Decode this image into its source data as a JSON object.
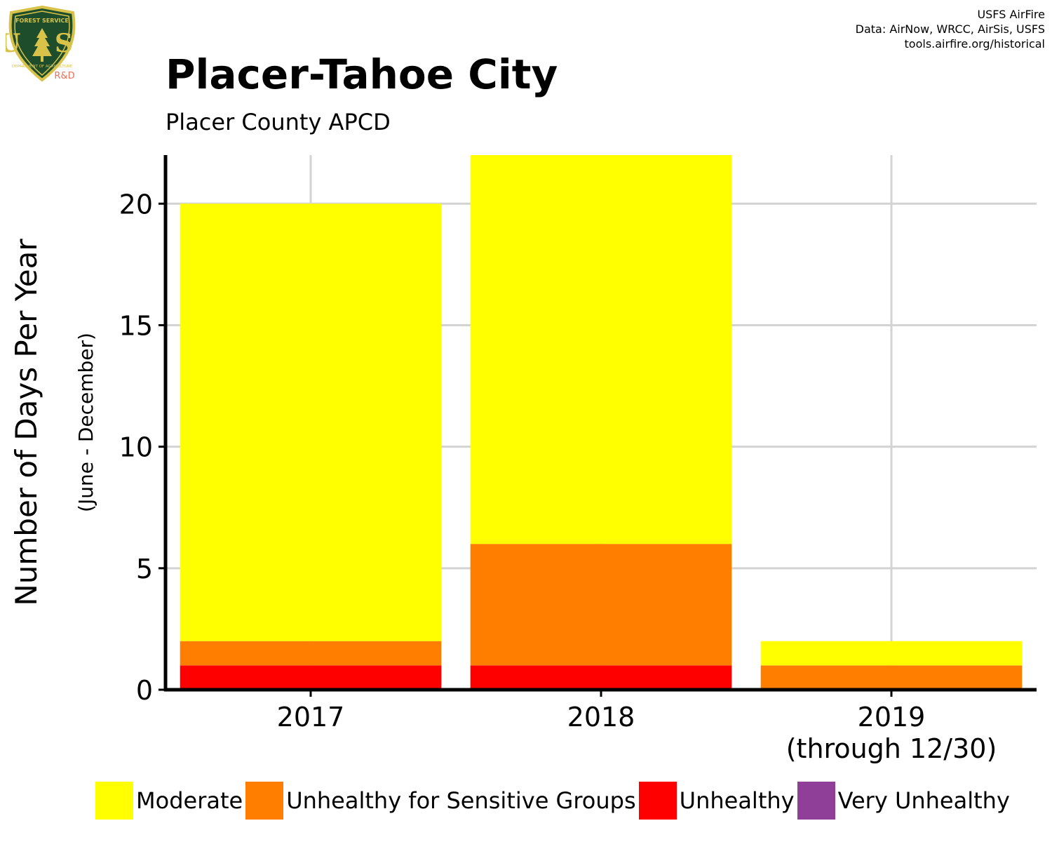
{
  "logo": {
    "text_top": "FOREST SERVICE",
    "text_mid": "U S",
    "text_bottom": "DEPARTMENT OF AGRICULTURE",
    "badge": "R&D",
    "icon": "usfs-shield-icon"
  },
  "credits": {
    "line1": "USFS AirFire",
    "line2": "Data: AirNow, WRCC, AirSis, USFS",
    "line3": "tools.airfire.org/historical"
  },
  "title": "Placer-Tahoe City",
  "subtitle": "Placer County APCD",
  "colors": {
    "moderate": "#FFFF00",
    "usg": "#FF7E00",
    "unhealthy": "#FF0000",
    "very_unhealthy": "#8F3F97",
    "grid": "#D3D3D3",
    "axis": "#000000"
  },
  "chart_data": {
    "type": "bar",
    "stacked": true,
    "categories": [
      "2017",
      "2018",
      "2019"
    ],
    "category_sublabels": [
      "",
      "",
      "(through 12/30)"
    ],
    "series": [
      {
        "name": "Unhealthy",
        "color": "#FF0000",
        "values": [
          1,
          1,
          0
        ]
      },
      {
        "name": "Unhealthy for Sensitive Groups",
        "color": "#FF7E00",
        "values": [
          1,
          5,
          1
        ]
      },
      {
        "name": "Moderate",
        "color": "#FFFF00",
        "values": [
          18,
          16,
          1
        ]
      },
      {
        "name": "Very Unhealthy",
        "color": "#8F3F97",
        "values": [
          0,
          0,
          0
        ]
      }
    ],
    "ylabel": "Number of Days Per Year",
    "ylabel_sub": "(June - December)",
    "ylim": [
      0,
      22
    ],
    "yticks": [
      0,
      5,
      10,
      15,
      20
    ],
    "grid": true,
    "legend_position": "bottom"
  },
  "legend": [
    {
      "label": "Moderate",
      "color": "#FFFF00"
    },
    {
      "label": "Unhealthy for Sensitive Groups",
      "color": "#FF7E00"
    },
    {
      "label": "Unhealthy",
      "color": "#FF0000"
    },
    {
      "label": "Very Unhealthy",
      "color": "#8F3F97"
    }
  ]
}
